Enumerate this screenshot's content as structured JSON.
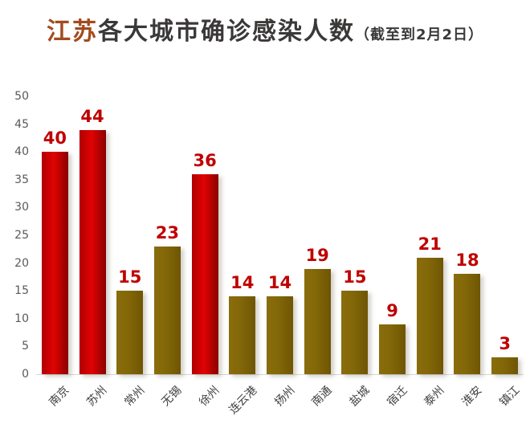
{
  "title": {
    "highlight": "江苏",
    "main": "各大城市确诊感染人数",
    "suffix": "（截至到2月2日）"
  },
  "colors": {
    "title_highlight": "#a34b1e",
    "title_text": "#3b3838",
    "value_label": "#c00000",
    "axis_text": "#595959",
    "city_text": "#404040",
    "axis_line": "#d6d6d6",
    "red_bar_gradient": [
      "#b00000",
      "#e00303",
      "#8b0000"
    ],
    "gold_bar_gradient": [
      "#8a6d0c",
      "#826708",
      "#6f5504"
    ]
  },
  "chart_data": {
    "type": "bar",
    "title": "江苏各大城市确诊感染人数（截至到2月2日）",
    "categories": [
      "南京",
      "苏州",
      "常州",
      "无锡",
      "徐州",
      "连云港",
      "扬州",
      "南通",
      "盐城",
      "宿迁",
      "泰州",
      "淮安",
      "镇江"
    ],
    "values": [
      40,
      44,
      15,
      23,
      36,
      14,
      14,
      19,
      15,
      9,
      21,
      18,
      3
    ],
    "bar_styles": [
      "red",
      "red",
      "gold",
      "gold",
      "red",
      "gold",
      "gold",
      "gold",
      "gold",
      "gold",
      "gold",
      "gold",
      "gold"
    ],
    "xlabel": "",
    "ylabel": "",
    "ylim": [
      0,
      50
    ],
    "yticks": [
      0,
      5,
      10,
      15,
      20,
      25,
      30,
      35,
      40,
      45,
      50
    ],
    "grid": false,
    "legend": false,
    "data_labels": true,
    "x_tick_rotation_deg": 45
  }
}
